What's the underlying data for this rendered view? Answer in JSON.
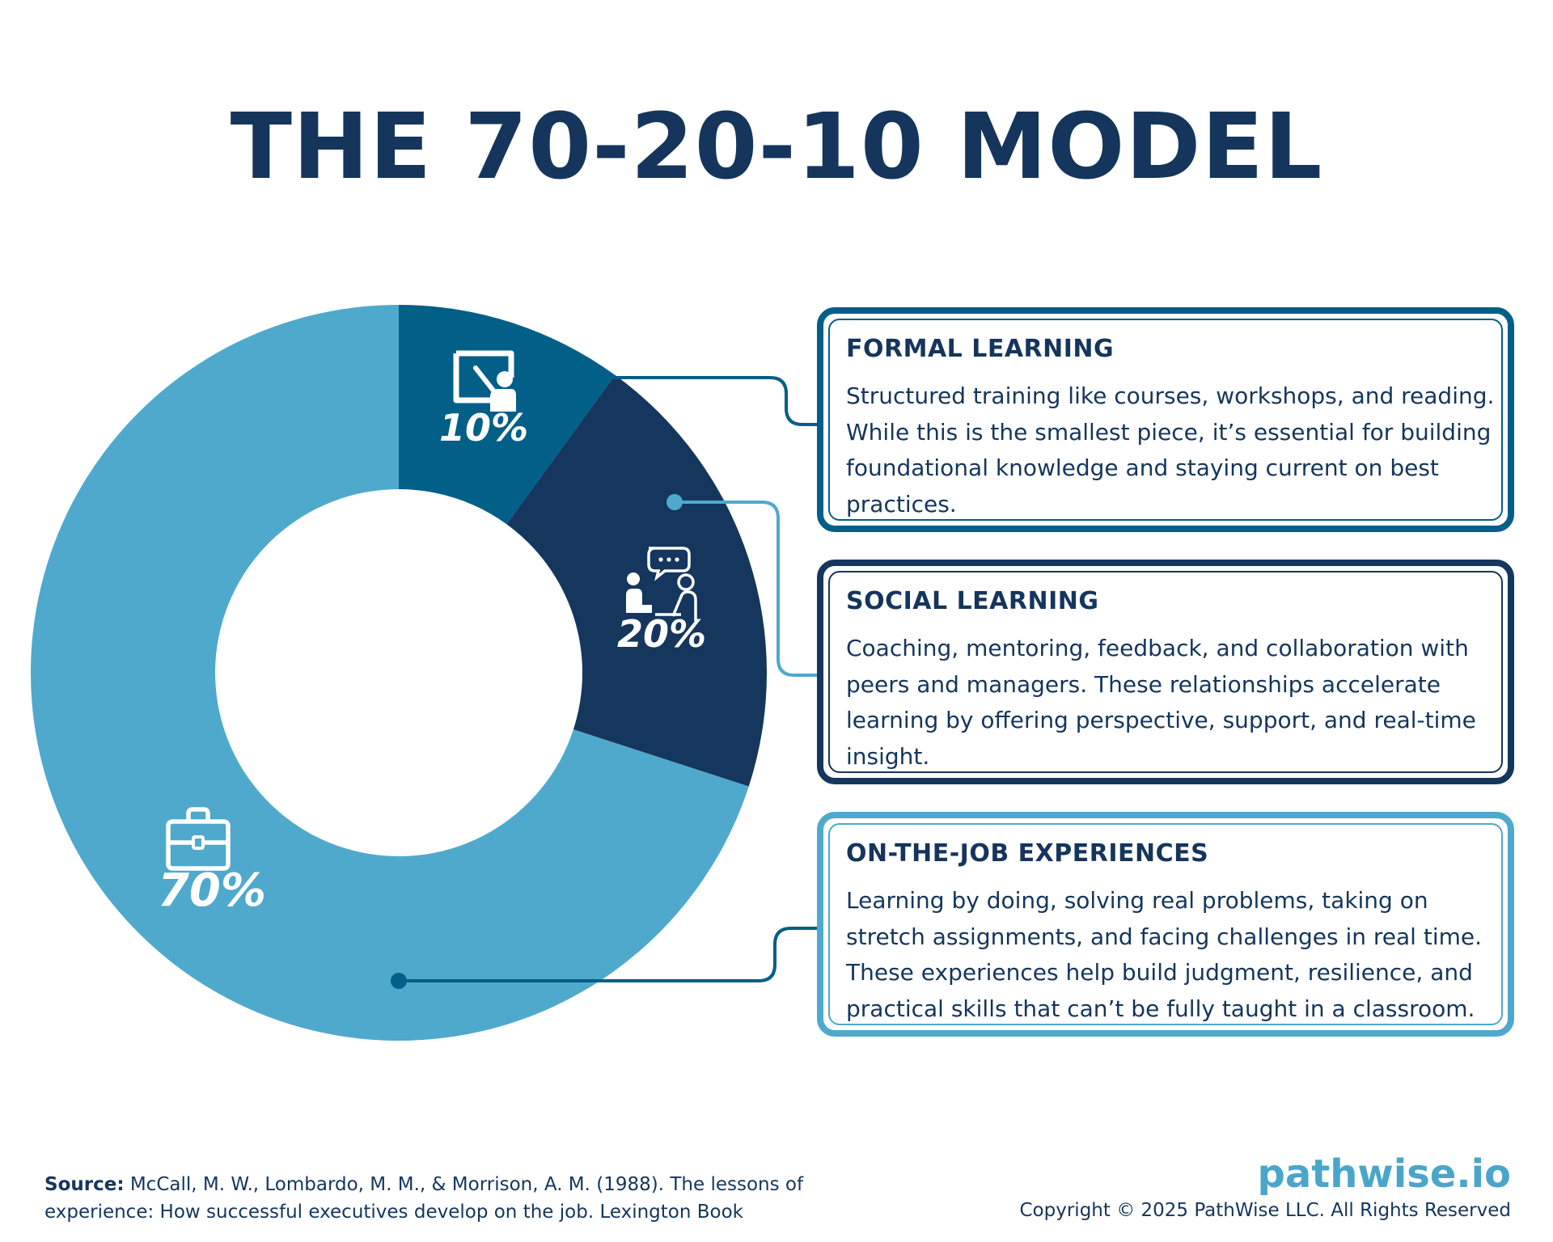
{
  "title": "THE 70-20-10 MODEL",
  "chart_data": {
    "type": "pie",
    "title": "THE 70-20-10 MODEL",
    "categories": [
      "FORMAL LEARNING",
      "SOCIAL LEARNING",
      "ON-THE-JOB EXPERIENCES"
    ],
    "values": [
      10,
      20,
      70
    ],
    "labels": [
      "10%",
      "20%",
      "70%"
    ],
    "colors": [
      "#015f88",
      "#15365d",
      "#4ea9cc"
    ],
    "icons": [
      "teacher-board-icon",
      "conversation-icon",
      "briefcase-icon"
    ],
    "donut": true,
    "legend": "right"
  },
  "cards": [
    {
      "title": "FORMAL LEARNING",
      "text": "Structured training like courses, workshops, and reading. While this is the smallest piece, it’s essential for building foundational knowledge and staying current on best practices.",
      "color": "#015f88"
    },
    {
      "title": "SOCIAL LEARNING",
      "text": "Coaching, mentoring, feedback, and collaboration with peers and managers. These relationships accelerate learning by offering perspective, support, and real-time insight.",
      "color": "#15365d"
    },
    {
      "title": "ON-THE-JOB EXPERIENCES",
      "text": "Learning by doing, solving real problems, taking on stretch assignments, and facing challenges in real time. These experiences help build judgment, resilience, and practical skills that can’t be fully taught in a classroom.",
      "color": "#4ea9cc"
    }
  ],
  "footer": {
    "source_label": "Source:",
    "source_text": "McCall, M. W., Lombardo, M. M., & Morrison, A. M. (1988). The lessons of experience: How successful executives develop on the job. Lexington Book",
    "logo": "pathwise.io",
    "copyright": "Copyright © 2025 PathWise LLC. All Rights Reserved"
  }
}
